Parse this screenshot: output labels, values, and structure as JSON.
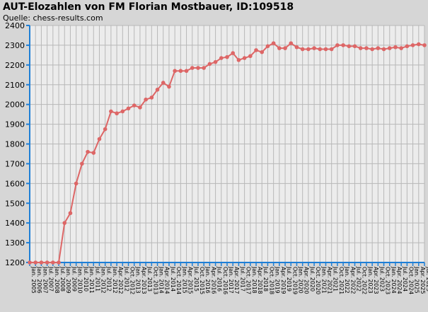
{
  "title": "AUT-Elozahlen von FM Florian Mostbauer, ID:109518",
  "subtitle": "Quelle: chess-results.com",
  "colors": {
    "background": "#d6d6d6",
    "plot_bg": "#ececec",
    "grid": "#b8b8b8",
    "axis": "#1e7fd6",
    "line": "#dd6666",
    "marker": "#dd6666"
  },
  "chart_data": {
    "type": "line",
    "title": "AUT-Elozahlen von FM Florian Mostbauer, ID:109518",
    "subtitle": "Quelle: chess-results.com",
    "ylim": [
      1200,
      2400
    ],
    "yticks": [
      1200,
      1300,
      1400,
      1500,
      1600,
      1700,
      1800,
      1900,
      2000,
      2100,
      2200,
      2300,
      2400
    ],
    "grid": true,
    "xticks": [
      "Jan. 2005",
      "Jan. 2006",
      "Jan. 2007",
      "Jul. 2007",
      "Jan. 2008",
      "Jul. 2008",
      "Jan. 2009",
      "Jul. 2009",
      "Jan. 2010",
      "Jul. 2010",
      "Jan. 2011",
      "Jul. 2011",
      "Jan. 2012",
      "Jul. 2012",
      "Jan. 2012",
      "Apr. 2012",
      "Jul. 2012",
      "Oct. 2012",
      "Jan. 2013",
      "Apr. 2013",
      "Jul. 2013",
      "Oct. 2013",
      "Jan. 2014",
      "Apr. 2014",
      "Jul. 2014",
      "Oct. 2014",
      "Jan. 2015",
      "Apr. 2015",
      "Jul. 2015",
      "Oct. 2015",
      "Jan. 2016",
      "Apr. 2016",
      "Jul. 2016",
      "Oct. 2016",
      "Jan. 2017",
      "Apr. 2017",
      "Jul. 2017",
      "Oct. 2017",
      "Jan. 2018",
      "Apr. 2018",
      "Jul. 2018",
      "Oct. 2018",
      "Jan. 2019",
      "Apr. 2019",
      "Jul. 2019",
      "Oct. 2019",
      "Jan. 2020",
      "Apr. 2020",
      "Jul. 2020",
      "Oct. 2020",
      "Jan. 2021",
      "Apr. 2021",
      "Jul. 2021",
      "Oct. 2021",
      "Jan. 2022",
      "Apr. 2022",
      "Jul. 2022",
      "Oct. 2022",
      "Jan. 2023",
      "Apr. 2023",
      "Jul. 2023",
      "Oct. 2023",
      "Jan. 2024",
      "Apr. 2024",
      "Jul. 2024",
      "Oct. 2024",
      "Jan. 2025",
      "Apr. 2025",
      "Jul. 2025"
    ],
    "series": [
      {
        "values": [
          1200,
          1200,
          1200,
          1200,
          1200,
          1200,
          1400,
          1450,
          1600,
          1700,
          1760,
          1755,
          1825,
          1875,
          1965,
          1955,
          1965,
          1980,
          1995,
          1985,
          2025,
          2035,
          2075,
          2110,
          2090,
          2170,
          2170,
          2170,
          2185,
          2185,
          2185,
          2205,
          2215,
          2235,
          2240,
          2260,
          2225,
          2235,
          2245,
          2275,
          2265,
          2295,
          2310,
          2285,
          2285,
          2310,
          2290,
          2280,
          2280,
          2285,
          2280,
          2280,
          2280,
          2300,
          2300,
          2295,
          2295,
          2285,
          2285,
          2280,
          2285,
          2280,
          2285,
          2290,
          2285,
          2295,
          2300,
          2305,
          2300
        ]
      }
    ]
  }
}
